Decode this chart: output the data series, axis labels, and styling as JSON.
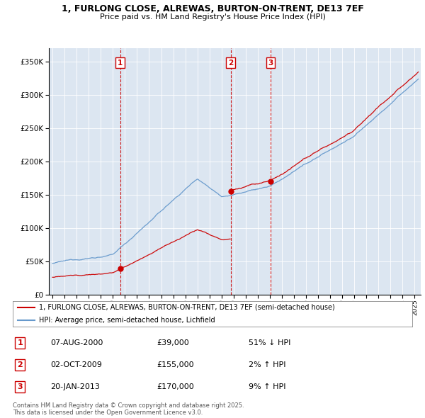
{
  "title1": "1, FURLONG CLOSE, ALREWAS, BURTON-ON-TRENT, DE13 7EF",
  "title2": "Price paid vs. HM Land Registry's House Price Index (HPI)",
  "legend_line1": "1, FURLONG CLOSE, ALREWAS, BURTON-ON-TRENT, DE13 7EF (semi-detached house)",
  "legend_line2": "HPI: Average price, semi-detached house, Lichfield",
  "sale_dates": [
    "07-AUG-2000",
    "02-OCT-2009",
    "20-JAN-2013"
  ],
  "sale_prices": [
    39000,
    155000,
    170000
  ],
  "sale_labels": [
    "1",
    "2",
    "3"
  ],
  "sale_years": [
    2000.6,
    2009.75,
    2013.05
  ],
  "table_rows": [
    [
      "1",
      "07-AUG-2000",
      "£39,000",
      "51% ↓ HPI"
    ],
    [
      "2",
      "02-OCT-2009",
      "£155,000",
      "2% ↑ HPI"
    ],
    [
      "3",
      "20-JAN-2013",
      "£170,000",
      "9% ↑ HPI"
    ]
  ],
  "red_color": "#cc0000",
  "blue_color": "#6699cc",
  "bg_color": "#dce6f1",
  "ylim_max": 370000,
  "xlim_start": 1994.7,
  "xlim_end": 2025.5,
  "footnote": "Contains HM Land Registry data © Crown copyright and database right 2025.\nThis data is licensed under the Open Government Licence v3.0."
}
